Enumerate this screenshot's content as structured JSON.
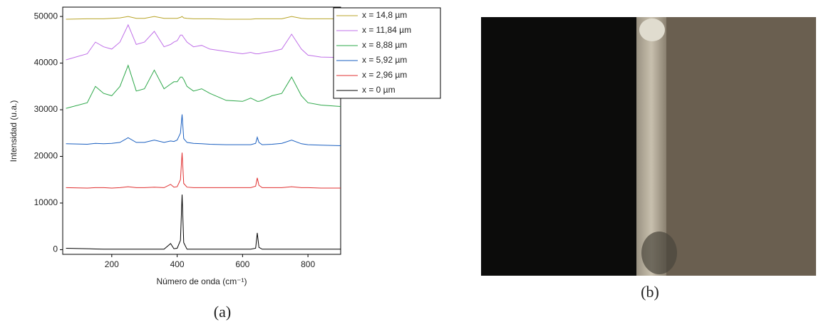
{
  "chart_data": {
    "type": "line",
    "y_label": "Intensidad (u.a.)",
    "x_label": "Número de onda (cm⁻¹)",
    "x": [
      60,
      125,
      150,
      175,
      200,
      225,
      250,
      275,
      300,
      330,
      360,
      380,
      390,
      400,
      410,
      415,
      420,
      430,
      450,
      475,
      500,
      550,
      600,
      625,
      640,
      645,
      650,
      660,
      690,
      720,
      750,
      780,
      800,
      840,
      900
    ],
    "xlim": [
      50,
      900
    ],
    "xticks": [
      200,
      400,
      600,
      800
    ],
    "ylim": [
      -1000,
      52000
    ],
    "yticks": [
      0,
      10000,
      20000,
      30000,
      40000,
      50000
    ],
    "legend": "top-right",
    "series": [
      {
        "name": "x = 14,8 µm",
        "color": "#b8a428",
        "values": [
          49400,
          49500,
          49500,
          49500,
          49600,
          49700,
          50000,
          49600,
          49600,
          50000,
          49600,
          49600,
          49600,
          49600,
          49800,
          50000,
          49700,
          49600,
          49500,
          49500,
          49500,
          49400,
          49400,
          49400,
          49500,
          49500,
          49500,
          49500,
          49500,
          49500,
          50000,
          49600,
          49500,
          49500,
          49500
        ]
      },
      {
        "name": "x = 11,84 µm",
        "color": "#c070e8",
        "values": [
          40700,
          42000,
          44500,
          43500,
          43000,
          44500,
          48200,
          44000,
          44500,
          46800,
          43500,
          44000,
          44500,
          44800,
          46000,
          46000,
          45500,
          44500,
          43500,
          43800,
          43000,
          42500,
          42000,
          42300,
          42000,
          42000,
          42000,
          42200,
          42500,
          43000,
          46200,
          43000,
          41700,
          41300,
          41200
        ]
      },
      {
        "name": "x = 8,88 µm",
        "color": "#2ea84a",
        "values": [
          30300,
          31500,
          35000,
          33500,
          33000,
          35000,
          39500,
          34000,
          34500,
          38500,
          34500,
          35500,
          36000,
          36000,
          37000,
          37000,
          36500,
          35000,
          34000,
          34500,
          33500,
          32000,
          31800,
          32500,
          32000,
          31800,
          31800,
          32000,
          33000,
          33500,
          37000,
          33000,
          31500,
          31000,
          30700
        ]
      },
      {
        "name": "x = 5,92 µm",
        "color": "#1a5fc0",
        "values": [
          22700,
          22600,
          22800,
          22700,
          22800,
          23000,
          24000,
          23000,
          23000,
          23500,
          23000,
          23300,
          23200,
          23500,
          25000,
          29000,
          23800,
          23000,
          22800,
          22700,
          22600,
          22500,
          22500,
          22500,
          22800,
          24100,
          23000,
          22500,
          22600,
          22800,
          23500,
          22700,
          22500,
          22400,
          22300
        ]
      },
      {
        "name": "x = 2,96 µm",
        "color": "#e03030",
        "values": [
          13300,
          13200,
          13300,
          13300,
          13200,
          13300,
          13500,
          13300,
          13300,
          13400,
          13300,
          14000,
          13400,
          13500,
          15000,
          20800,
          14200,
          13400,
          13300,
          13300,
          13300,
          13300,
          13300,
          13300,
          13600,
          15400,
          13800,
          13300,
          13300,
          13300,
          13500,
          13300,
          13300,
          13200,
          13200
        ]
      },
      {
        "name": "x = 0 µm",
        "color": "#000000",
        "values": [
          300,
          200,
          150,
          100,
          100,
          100,
          100,
          100,
          100,
          100,
          100,
          1300,
          200,
          300,
          2000,
          11800,
          1500,
          100,
          100,
          100,
          100,
          100,
          100,
          100,
          300,
          3600,
          500,
          100,
          100,
          100,
          100,
          100,
          100,
          100,
          100
        ]
      }
    ]
  },
  "captions": [
    "(a)",
    "(b)"
  ]
}
